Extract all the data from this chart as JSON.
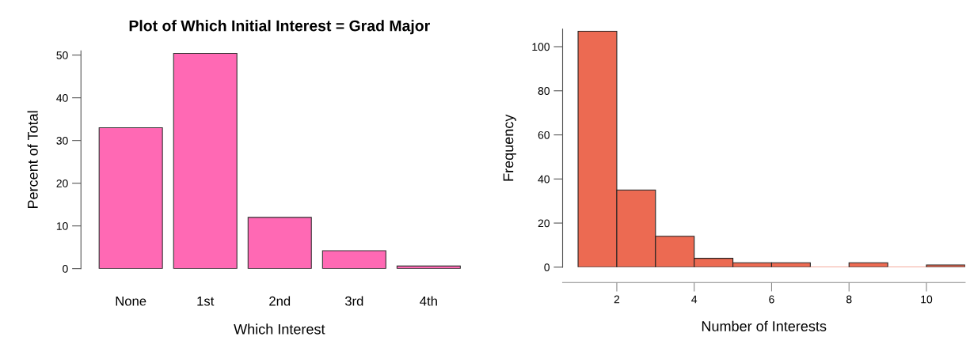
{
  "chart_data": [
    {
      "type": "bar",
      "title": "Plot of Which Initial Interest = Grad Major",
      "xlabel": "Which Interest",
      "ylabel": "Percent of Total",
      "categories": [
        "None",
        "1st",
        "2nd",
        "3rd",
        "4th"
      ],
      "values": [
        33,
        50.4,
        12,
        4.2,
        0.6
      ],
      "color": "#ff69b4",
      "ylim": [
        0,
        51
      ],
      "yticks": [
        0,
        10,
        20,
        30,
        40,
        50
      ],
      "grid": false
    },
    {
      "type": "histogram",
      "xlabel": "Number of Interests",
      "ylabel": "Frequency",
      "bins": [
        1,
        2,
        3,
        4,
        5,
        6,
        7,
        8,
        9,
        10,
        11
      ],
      "values": [
        107,
        35,
        14,
        4,
        2,
        2,
        0,
        2,
        0,
        1
      ],
      "color": "#ec6a52",
      "xlim": [
        0.6,
        11
      ],
      "xticks": [
        2,
        4,
        6,
        8,
        10
      ],
      "ylim": [
        0,
        108
      ],
      "yticks": [
        0,
        20,
        40,
        60,
        80,
        100
      ],
      "grid": false
    }
  ]
}
